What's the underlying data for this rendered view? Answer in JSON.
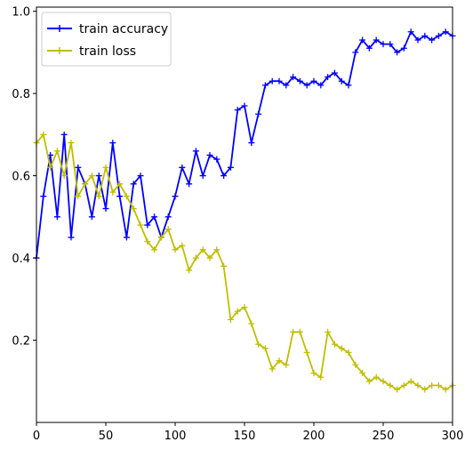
{
  "chart_data": {
    "type": "line",
    "title": "",
    "xlabel": "",
    "ylabel": "",
    "xlim": [
      0,
      300
    ],
    "ylim": [
      0.0,
      1.01
    ],
    "xticks": [
      0,
      50,
      100,
      150,
      200,
      250,
      300
    ],
    "xtick_labels": [
      "0",
      "50",
      "100",
      "150",
      "200",
      "250",
      "300"
    ],
    "yticks": [
      0.2,
      0.4,
      0.6,
      0.8,
      1.0
    ],
    "ytick_labels": [
      "0.2",
      "0.4",
      "0.6",
      "0.8",
      "1.0"
    ],
    "grid": false,
    "legend_position": "upper-left",
    "marker": "+",
    "series": [
      {
        "name": "train accuracy",
        "color": "#0000ff",
        "x": [
          0,
          5,
          10,
          15,
          20,
          25,
          30,
          35,
          40,
          45,
          50,
          55,
          60,
          65,
          70,
          75,
          80,
          85,
          90,
          95,
          100,
          105,
          110,
          115,
          120,
          125,
          130,
          135,
          140,
          145,
          150,
          155,
          160,
          165,
          170,
          175,
          180,
          185,
          190,
          195,
          200,
          205,
          210,
          215,
          220,
          225,
          230,
          235,
          240,
          245,
          250,
          255,
          260,
          265,
          270,
          275,
          280,
          285,
          290,
          295,
          300
        ],
        "values": [
          0.4,
          0.55,
          0.65,
          0.5,
          0.7,
          0.45,
          0.62,
          0.58,
          0.5,
          0.6,
          0.52,
          0.68,
          0.55,
          0.45,
          0.58,
          0.6,
          0.48,
          0.5,
          0.45,
          0.5,
          0.55,
          0.62,
          0.58,
          0.66,
          0.6,
          0.65,
          0.64,
          0.6,
          0.62,
          0.76,
          0.77,
          0.68,
          0.75,
          0.82,
          0.83,
          0.83,
          0.82,
          0.84,
          0.83,
          0.82,
          0.83,
          0.82,
          0.84,
          0.85,
          0.83,
          0.82,
          0.9,
          0.93,
          0.91,
          0.93,
          0.92,
          0.92,
          0.9,
          0.91,
          0.95,
          0.93,
          0.94,
          0.93,
          0.94,
          0.95,
          0.94
        ]
      },
      {
        "name": "train loss",
        "color": "#bfbf00",
        "x": [
          0,
          5,
          10,
          15,
          20,
          25,
          30,
          35,
          40,
          45,
          50,
          55,
          60,
          65,
          70,
          75,
          80,
          85,
          90,
          95,
          100,
          105,
          110,
          115,
          120,
          125,
          130,
          135,
          140,
          145,
          150,
          155,
          160,
          165,
          170,
          175,
          180,
          185,
          190,
          195,
          200,
          205,
          210,
          215,
          220,
          225,
          230,
          235,
          240,
          245,
          250,
          255,
          260,
          265,
          270,
          275,
          280,
          285,
          290,
          295,
          300
        ],
        "values": [
          0.68,
          0.7,
          0.62,
          0.66,
          0.6,
          0.68,
          0.55,
          0.58,
          0.6,
          0.55,
          0.62,
          0.56,
          0.58,
          0.55,
          0.52,
          0.48,
          0.44,
          0.42,
          0.45,
          0.47,
          0.42,
          0.43,
          0.37,
          0.4,
          0.42,
          0.4,
          0.42,
          0.38,
          0.25,
          0.27,
          0.28,
          0.24,
          0.19,
          0.18,
          0.13,
          0.15,
          0.14,
          0.22,
          0.22,
          0.17,
          0.12,
          0.11,
          0.22,
          0.19,
          0.18,
          0.17,
          0.14,
          0.12,
          0.1,
          0.11,
          0.1,
          0.09,
          0.08,
          0.09,
          0.1,
          0.09,
          0.08,
          0.09,
          0.09,
          0.08,
          0.09
        ]
      }
    ]
  }
}
